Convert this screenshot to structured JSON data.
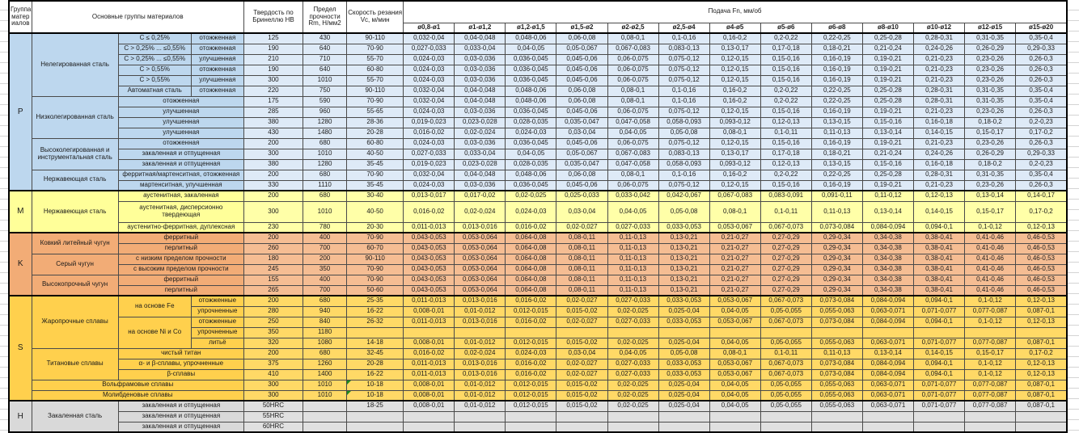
{
  "header": {
    "col_group": "Группа матер иалов",
    "col_main": "Основные группы материалов",
    "col_hb": "Твердость по Бринеллю HB",
    "col_rm": "Предел прочности Rm, Н/мм2",
    "col_vc": "Скорость резания Vc, м/мин",
    "col_feed": "Подача Fn, мм/об",
    "diameters": [
      "ø0,8-ø1",
      "ø1-ø1,2",
      "ø1,2-ø1,5",
      "ø1,5-ø2",
      "ø2-ø2,5",
      "ø2,5-ø4",
      "ø4-ø5",
      "ø5-ø6",
      "ø6-ø8",
      "ø8-ø10",
      "ø10-ø12",
      "ø12-ø15",
      "ø15-ø20"
    ]
  },
  "feed_patterns": {
    "A": [
      "0,032-0,04",
      "0,04-0,048",
      "0,048-0,06",
      "0,06-0,08",
      "0,08-0,1",
      "0,1-0,16",
      "0,16-0,2",
      "0,2-0,22",
      "0,22-0,25",
      "0,25-0,28",
      "0,28-0,31",
      "0,31-0,35",
      "0,35-0,4"
    ],
    "B": [
      "0,027-0,033",
      "0,033-0,04",
      "0,04-0,05",
      "0,05-0,067",
      "0,067-0,083",
      "0,083-0,13",
      "0,13-0,17",
      "0,17-0,18",
      "0,18-0,21",
      "0,21-0,24",
      "0,24-0,26",
      "0,26-0,29",
      "0,29-0,33"
    ],
    "C": [
      "0,024-0,03",
      "0,03-0,036",
      "0,036-0,045",
      "0,045-0,06",
      "0,06-0,075",
      "0,075-0,12",
      "0,12-0,15",
      "0,15-0,16",
      "0,16-0,19",
      "0,19-0,21",
      "0,21-0,23",
      "0,23-0,26",
      "0,26-0,3"
    ],
    "D": [
      "0,019-0,023",
      "0,023-0,028",
      "0,028-0,035",
      "0,035-0,047",
      "0,047-0,058",
      "0,058-0,093",
      "0,093-0,12",
      "0,12-0,13",
      "0,13-0,15",
      "0,15-0,16",
      "0,16-0,18",
      "0,18-0,2",
      "0,2-0,23"
    ],
    "E": [
      "0,016-0,02",
      "0,02-0,024",
      "0,024-0,03",
      "0,03-0,04",
      "0,04-0,05",
      "0,05-0,08",
      "0,08-0,1",
      "0,1-0,11",
      "0,11-0,13",
      "0,13-0,14",
      "0,14-0,15",
      "0,15-0,17",
      "0,17-0,2"
    ],
    "F": [
      "0,013-0,017",
      "0,017-0,02",
      "0,02-0,025",
      "0,025-0,033",
      "0,033-0,042",
      "0,042-0,067",
      "0,067-0,083",
      "0,083-0,091",
      "0,091-0,11",
      "0,11-0,12",
      "0,12-0,13",
      "0,13-0,14",
      "0,14-0,17"
    ],
    "G": [
      "0,011-0,013",
      "0,013-0,016",
      "0,016-0,02",
      "0,02-0,027",
      "0,027-0,033",
      "0,033-0,053",
      "0,053-0,067",
      "0,067-0,073",
      "0,073-0,084",
      "0,084-0,094",
      "0,094-0,1",
      "0,1-0,12",
      "0,12-0,13"
    ],
    "H": [
      "0,043-0,053",
      "0,053-0,064",
      "0,064-0,08",
      "0,08-0,11",
      "0,11-0,13",
      "0,13-0,21",
      "0,21-0,27",
      "0,27-0,29",
      "0,29-0,34",
      "0,34-0,38",
      "0,38-0,41",
      "0,41-0,46",
      "0,46-0,53"
    ],
    "I": [
      "0,008-0,01",
      "0,01-0,012",
      "0,012-0,015",
      "0,015-0,02",
      "0,02-0,025",
      "0,025-0,04",
      "0,04-0,05",
      "0,05-0,055",
      "0,055-0,063",
      "0,063-0,071",
      "0,071-0,077",
      "0,077-0,087",
      "0,087-0,1"
    ]
  },
  "rows": [
    {
      "sec": "P",
      "first": true,
      "labels": [
        {
          "t": "P",
          "L": true,
          "r": 15
        },
        {
          "t": "Нелегированная сталь",
          "r": 6
        },
        {
          "t": "C ≤ 0,25%"
        },
        {
          "t": "отожженная"
        }
      ],
      "hb": "125",
      "rm": "430",
      "vc": "90-110",
      "feed": "A"
    },
    {
      "sec": "P",
      "labels": [
        {
          "t": "C > 0,25% ... ≤0,55%"
        },
        {
          "t": "отожженная"
        }
      ],
      "hb": "190",
      "rm": "640",
      "vc": "70-90",
      "feed": "B"
    },
    {
      "sec": "P",
      "labels": [
        {
          "t": "C > 0,25% ... ≤0,55%"
        },
        {
          "t": "улучшенная"
        }
      ],
      "hb": "210",
      "rm": "710",
      "vc": "55-70",
      "feed": "C"
    },
    {
      "sec": "P",
      "labels": [
        {
          "t": "C > 0,55%"
        },
        {
          "t": "отожженная"
        }
      ],
      "hb": "190",
      "rm": "640",
      "vc": "60-80",
      "feed": "C"
    },
    {
      "sec": "P",
      "labels": [
        {
          "t": "C > 0,55%"
        },
        {
          "t": "улучшенная"
        }
      ],
      "hb": "300",
      "rm": "1010",
      "vc": "55-70",
      "feed": "C"
    },
    {
      "sec": "P",
      "labels": [
        {
          "t": "Автоматная сталь"
        },
        {
          "t": "отожженная"
        }
      ],
      "hb": "220",
      "rm": "750",
      "vc": "90-110",
      "feed": "A"
    },
    {
      "sec": "P",
      "labels": [
        {
          "t": "Низколегированная сталь",
          "r": 4
        },
        {
          "t": "отожженная",
          "c": 2
        }
      ],
      "hb": "175",
      "rm": "590",
      "vc": "70-90",
      "feed": "A"
    },
    {
      "sec": "P",
      "labels": [
        {
          "t": "улучшенная",
          "c": 2
        }
      ],
      "hb": "285",
      "rm": "960",
      "vc": "55-65",
      "feed": "C"
    },
    {
      "sec": "P",
      "labels": [
        {
          "t": "улучшенная",
          "c": 2
        }
      ],
      "hb": "380",
      "rm": "1280",
      "vc": "28-36",
      "feed": "D"
    },
    {
      "sec": "P",
      "labels": [
        {
          "t": "улучшенная",
          "c": 2
        }
      ],
      "hb": "430",
      "rm": "1480",
      "vc": "20-28",
      "feed": "E"
    },
    {
      "sec": "P",
      "labels": [
        {
          "t": "Высоколегированная и инструментальная сталь",
          "r": 3
        },
        {
          "t": "отожженная",
          "c": 2
        }
      ],
      "hb": "200",
      "rm": "680",
      "vc": "60-80",
      "feed": "C"
    },
    {
      "sec": "P",
      "labels": [
        {
          "t": "закаленная и отпущенная",
          "c": 2
        }
      ],
      "hb": "300",
      "rm": "1010",
      "vc": "40-50",
      "feed": "B"
    },
    {
      "sec": "P",
      "labels": [
        {
          "t": "закаленная и отпущенная",
          "c": 2
        }
      ],
      "hb": "380",
      "rm": "1280",
      "vc": "35-45",
      "feed": "D"
    },
    {
      "sec": "P",
      "labels": [
        {
          "t": "Нержавеющая сталь",
          "r": 2
        },
        {
          "t": "ферритная/мартенситная, отожженная",
          "c": 2
        }
      ],
      "hb": "200",
      "rm": "680",
      "vc": "70-90",
      "feed": "A"
    },
    {
      "sec": "P",
      "labels": [
        {
          "t": "мартенситная, улучшенная",
          "c": 2
        }
      ],
      "hb": "330",
      "rm": "1110",
      "vc": "35-45",
      "feed": "C"
    },
    {
      "sec": "M",
      "first": true,
      "labels": [
        {
          "t": "M",
          "L": true,
          "r": 3
        },
        {
          "t": "Нержавеющая сталь",
          "r": 3
        },
        {
          "t": "аустенитная, закаленная",
          "c": 2
        }
      ],
      "hb": "200",
      "rm": "680",
      "vc": "30-40",
      "feed": "F"
    },
    {
      "sec": "M",
      "tall": true,
      "labels": [
        {
          "t": "аустенитная, дисперсионно твердеющая",
          "c": 2
        }
      ],
      "hb": "300",
      "rm": "1010",
      "vc": "40-50",
      "feed": "E"
    },
    {
      "sec": "M",
      "labels": [
        {
          "t": "аустенитно-ферритная, дуплексная",
          "c": 2
        }
      ],
      "hb": "230",
      "rm": "780",
      "vc": "20-30",
      "feed": "G"
    },
    {
      "sec": "K",
      "first": true,
      "labels": [
        {
          "t": "K",
          "L": true,
          "r": 6
        },
        {
          "t": "Ковкий литейный чугун",
          "r": 2
        },
        {
          "t": "ферритный",
          "c": 2
        }
      ],
      "hb": "200",
      "rm": "400",
      "vc": "70-90",
      "feed": "H"
    },
    {
      "sec": "K",
      "labels": [
        {
          "t": "перлитный",
          "c": 2
        }
      ],
      "hb": "260",
      "rm": "700",
      "vc": "60-70",
      "feed": "H"
    },
    {
      "sec": "K",
      "labels": [
        {
          "t": "Серый чугун",
          "r": 2
        },
        {
          "t": "с низким пределом прочности",
          "c": 2
        }
      ],
      "hb": "180",
      "rm": "200",
      "vc": "90-110",
      "feed": "H"
    },
    {
      "sec": "K",
      "labels": [
        {
          "t": "с высоким пределом прочности",
          "c": 2
        }
      ],
      "hb": "245",
      "rm": "350",
      "vc": "70-90",
      "feed": "H"
    },
    {
      "sec": "K",
      "labels": [
        {
          "t": "Высокопрочный чугун",
          "r": 2
        },
        {
          "t": "ферритный",
          "c": 2
        }
      ],
      "hb": "155",
      "rm": "400",
      "vc": "70-90",
      "feed": "H"
    },
    {
      "sec": "K",
      "labels": [
        {
          "t": "перлитный",
          "c": 2
        }
      ],
      "hb": "265",
      "rm": "700",
      "vc": "50-60",
      "feed": "H"
    },
    {
      "sec": "S",
      "first": true,
      "labels": [
        {
          "t": "S",
          "L": true,
          "r": 10
        },
        {
          "t": "Жаропрочные сплавы",
          "r": 5
        },
        {
          "t": "на основе Fe",
          "r": 2
        },
        {
          "t": "отожженные"
        }
      ],
      "hb": "200",
      "rm": "680",
      "vc": "25-35",
      "feed": "G"
    },
    {
      "sec": "S",
      "labels": [
        {
          "t": "упрочненные"
        }
      ],
      "hb": "280",
      "rm": "940",
      "vc": "16-22",
      "feed": "I"
    },
    {
      "sec": "S",
      "labels": [
        {
          "t": "на основе Ni и Co",
          "r": 3
        },
        {
          "t": "отожженные"
        }
      ],
      "hb": "250",
      "rm": "840",
      "vc": "26-32",
      "feed": "G"
    },
    {
      "sec": "S",
      "labels": [
        {
          "t": "упрочненные"
        }
      ],
      "hb": "350",
      "rm": "1180",
      "vc": "",
      "feed": null
    },
    {
      "sec": "S",
      "labels": [
        {
          "t": "литьё"
        }
      ],
      "hb": "320",
      "rm": "1080",
      "vc": "14-18",
      "feed": "I"
    },
    {
      "sec": "S",
      "labels": [
        {
          "t": "Титановые сплавы",
          "r": 3
        },
        {
          "t": "чистый титан",
          "c": 2
        }
      ],
      "hb": "200",
      "rm": "680",
      "vc": "32-45",
      "feed": "E"
    },
    {
      "sec": "S",
      "labels": [
        {
          "t": "α- и β-сплавы, упрочненные",
          "c": 2
        }
      ],
      "hb": "375",
      "rm": "1260",
      "vc": "20-28",
      "feed": "G"
    },
    {
      "sec": "S",
      "labels": [
        {
          "t": "β-сплавы",
          "c": 2
        }
      ],
      "hb": "410",
      "rm": "1400",
      "vc": "16-22",
      "feed": "G"
    },
    {
      "sec": "S",
      "labels": [
        {
          "t": "Вольфрамовые сплавы",
          "c": 3
        }
      ],
      "hb": "300",
      "rm": "1010",
      "vc": "10-18",
      "feed": "I",
      "marker": true
    },
    {
      "sec": "S",
      "labels": [
        {
          "t": "Молибденовые сплавы",
          "c": 3
        }
      ],
      "hb": "300",
      "rm": "1010",
      "vc": "10-18",
      "feed": "I",
      "marker": true
    },
    {
      "sec": "H",
      "first": true,
      "labels": [
        {
          "t": "H",
          "L": true,
          "r": 3
        },
        {
          "t": "Закаленная сталь",
          "r": 3
        },
        {
          "t": "закаленная и отпущенная",
          "c": 2
        }
      ],
      "hb": "50HRC",
      "rm": "",
      "vc": "18-25",
      "feed": "I"
    },
    {
      "sec": "H",
      "labels": [
        {
          "t": "закаленная и отпущенная",
          "c": 2
        }
      ],
      "hb": "55HRC",
      "rm": "",
      "vc": "",
      "feed": null
    },
    {
      "sec": "H",
      "labels": [
        {
          "t": "закаленная и отпущенная",
          "c": 2
        }
      ],
      "hb": "60HRC",
      "rm": "",
      "vc": "",
      "feed": null
    }
  ]
}
